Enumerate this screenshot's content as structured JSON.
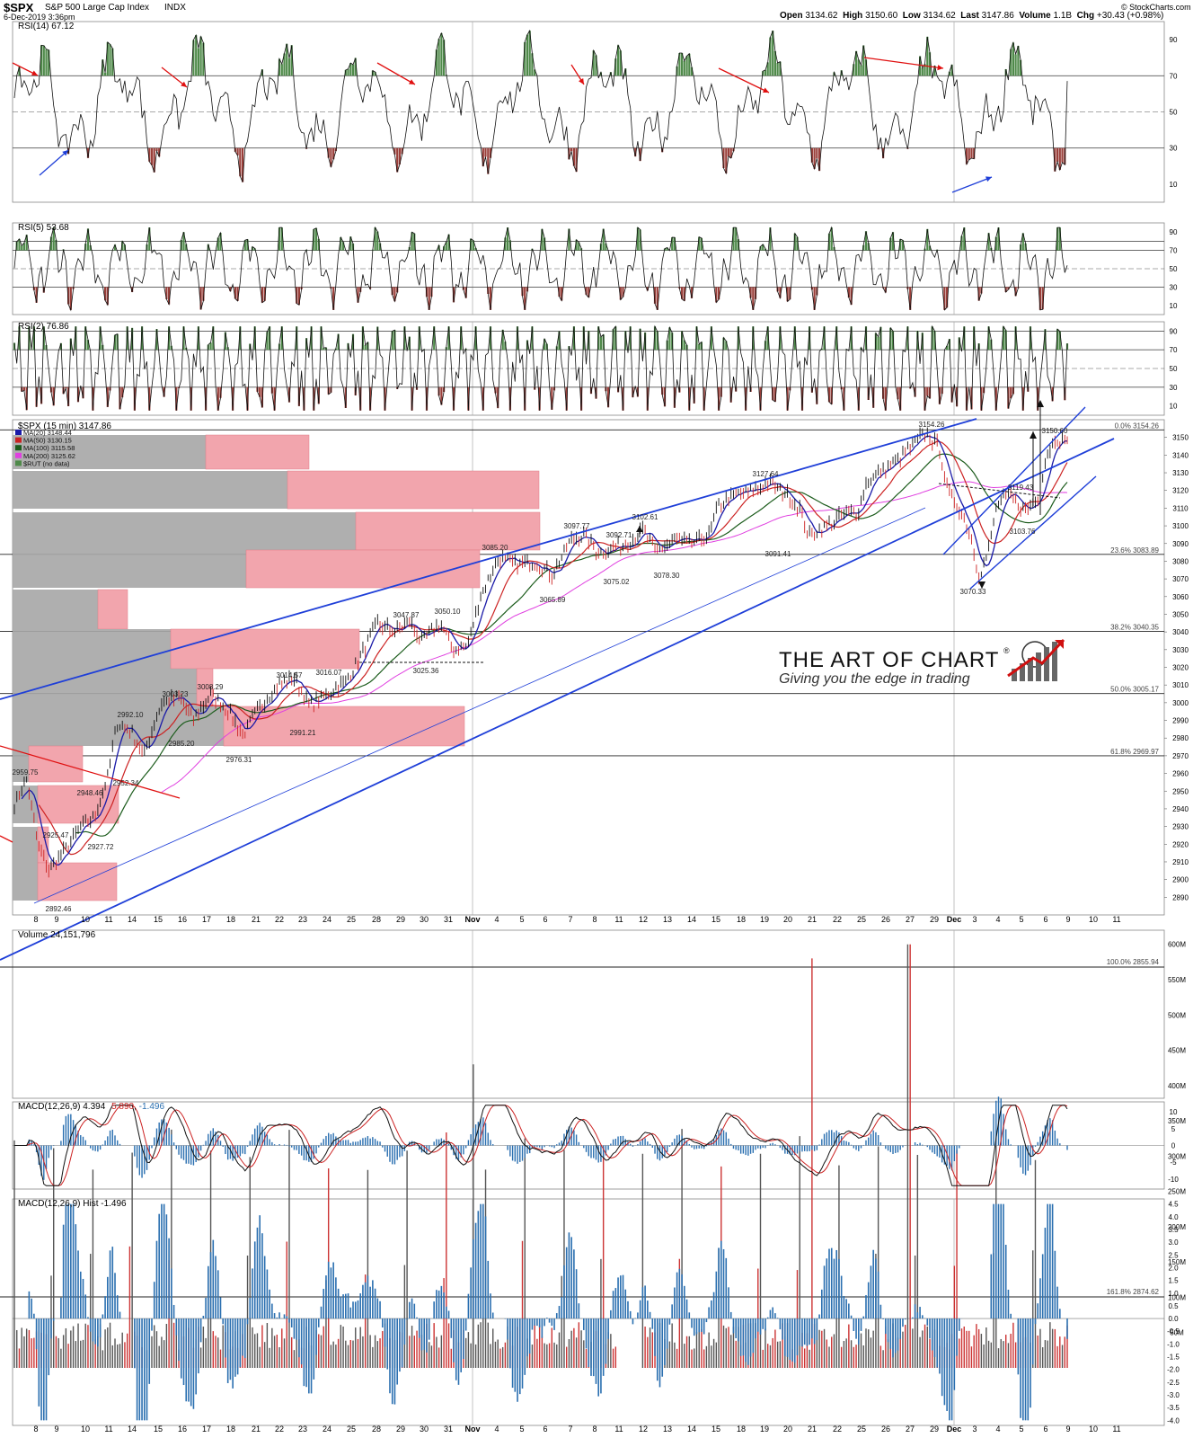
{
  "header": {
    "ticker": "$SPX",
    "name": "S&P 500 Large Cap Index",
    "exchange": "INDX",
    "date": "6-Dec-2019 3:36pm",
    "open_label": "Open",
    "open": "3134.62",
    "high_label": "High",
    "high": "3150.60",
    "low_label": "Low",
    "low": "3134.62",
    "last_label": "Last",
    "last": "3147.86",
    "volume_label": "Volume",
    "volume": "1.1B",
    "chg_label": "Chg",
    "chg": "+30.43 (+0.98%)",
    "copyright": "© StockCharts.com"
  },
  "watermark": {
    "title": "THE ART OF CHART",
    "reg": "®",
    "subtitle": "Giving you the edge in trading"
  },
  "colors": {
    "price_down": "#cc2222",
    "ma20": "#1a1aa8",
    "ma50": "#cc2222",
    "ma100": "#1c5c1c",
    "ma200": "#e040e0",
    "trendline": "#1f3fd8",
    "red_line": "#e01010",
    "overbought": "#4f8a4a",
    "oversold": "#9a3f3a",
    "macd_hist": "#2a6fb0",
    "vol_up": "#555555",
    "vol_down": "#cc3333",
    "vp_grey": "#a6a6a6",
    "vp_red": "#f2a5ad"
  },
  "chart_data": [
    {
      "panel": "rsi14",
      "type": "line",
      "title": "RSI(14) 67.12",
      "yticks": [
        "90",
        "70",
        "50",
        "30",
        "10"
      ],
      "ylim": [
        0,
        100
      ],
      "levels": [
        70,
        50,
        30
      ],
      "last_value": 67.12
    },
    {
      "panel": "rsi5",
      "type": "line",
      "title": "RSI(5) 53.68",
      "yticks": [
        "90",
        "70",
        "50",
        "30",
        "10"
      ],
      "ylim": [
        0,
        100
      ],
      "levels": [
        80,
        70,
        50,
        30
      ],
      "last_value": 53.68
    },
    {
      "panel": "rsi2",
      "type": "line",
      "title": "RSI(2) 76.86",
      "yticks": [
        "90",
        "70",
        "50",
        "30",
        "10"
      ],
      "ylim": [
        0,
        100
      ],
      "levels": [
        90,
        70,
        50,
        30
      ],
      "last_value": 76.86
    },
    {
      "panel": "price",
      "type": "line",
      "title": "$SPX (15 min) 3147.86",
      "legend": [
        {
          "label": "MA(20) 3148.44",
          "color": "#1a1aa8"
        },
        {
          "label": "MA(50) 3130.15",
          "color": "#cc2222"
        },
        {
          "label": "MA(100) 3115.58",
          "color": "#1c5c1c"
        },
        {
          "label": "MA(200) 3125.62",
          "color": "#e040e0"
        },
        {
          "label": "$RUT (no data)",
          "color": "#4f8a4a"
        }
      ],
      "ylim": [
        2880,
        3160
      ],
      "yticks": [
        "3150",
        "3140",
        "3130",
        "3120",
        "3110",
        "3100",
        "3090",
        "3080",
        "3070",
        "3060",
        "3050",
        "3040",
        "3030",
        "3020",
        "3010",
        "3000",
        "2990",
        "2980",
        "2970",
        "2960",
        "2950",
        "2940",
        "2930",
        "2920",
        "2910",
        "2900",
        "2890"
      ],
      "fib_levels": [
        {
          "label": "0.0% 3154.26",
          "value": 3154.26
        },
        {
          "label": "23.6% 3083.89",
          "value": 3083.89
        },
        {
          "label": "38.2% 3040.35",
          "value": 3040.35
        },
        {
          "label": "50.0% 3005.17",
          "value": 3005.17
        },
        {
          "label": "61.8% 2969.97",
          "value": 2969.97
        }
      ],
      "annotations": [
        {
          "text": "2959.75",
          "value": 2959.75
        },
        {
          "text": "2948.46",
          "value": 2948.46
        },
        {
          "text": "2925.47",
          "value": 2925.47
        },
        {
          "text": "2927.72",
          "value": 2927.72
        },
        {
          "text": "2892.46",
          "value": 2892.46
        },
        {
          "text": "2952.34",
          "value": 2952.34
        },
        {
          "text": "2992.10",
          "value": 2992.1
        },
        {
          "text": "2985.20",
          "value": 2985.2
        },
        {
          "text": "3003.23",
          "value": 3003.23
        },
        {
          "text": "3008.29",
          "value": 3008.29
        },
        {
          "text": "2976.31",
          "value": 2976.31
        },
        {
          "text": "3014.57",
          "value": 3014.57
        },
        {
          "text": "2991.21",
          "value": 2991.21
        },
        {
          "text": "3016.07",
          "value": 3016.07
        },
        {
          "text": "3047.87",
          "value": 3047.87
        },
        {
          "text": "3050.10",
          "value": 3050.1
        },
        {
          "text": "3025.36",
          "value": 3025.36
        },
        {
          "text": "3085.20",
          "value": 3085.2
        },
        {
          "text": "3065.89",
          "value": 3065.89
        },
        {
          "text": "3097.77",
          "value": 3097.77
        },
        {
          "text": "3092.71",
          "value": 3092.71
        },
        {
          "text": "3102.61",
          "value": 3102.61
        },
        {
          "text": "3075.02",
          "value": 3075.02
        },
        {
          "text": "3078.30",
          "value": 3078.3
        },
        {
          "text": "3127.64",
          "value": 3127.64
        },
        {
          "text": "3091.41",
          "value": 3091.41
        },
        {
          "text": "3154.26",
          "value": 3154.26
        },
        {
          "text": "3119.43",
          "value": 3119.43
        },
        {
          "text": "3103.76",
          "value": 3103.76
        },
        {
          "text": "3070.33",
          "value": 3070.33
        },
        {
          "text": "3150.60",
          "value": 3150.6
        }
      ],
      "last_value": 3147.86
    },
    {
      "panel": "volume",
      "type": "bar",
      "title": "Volume 24,151,796",
      "yticks": [
        "600M",
        "550M",
        "500M",
        "450M",
        "400M",
        "350M",
        "300M",
        "250M",
        "200M",
        "150M",
        "100M",
        "50M"
      ],
      "ylim": [
        0,
        620
      ],
      "fib_label": "100.0% 2855.94"
    },
    {
      "panel": "macd",
      "type": "line",
      "title_parts": [
        "MACD(12,26,9) 4.394",
        "5.890",
        "-1.496"
      ],
      "yticks": [
        "10",
        "5",
        "0",
        "-5",
        "-10"
      ],
      "ylim": [
        -13,
        13
      ]
    },
    {
      "panel": "macd_hist",
      "type": "bar",
      "title": "MACD(12,26,9) Hist -1.496",
      "yticks": [
        "4.5",
        "4.0",
        "3.5",
        "3.0",
        "2.5",
        "2.0",
        "1.5",
        "1.0",
        "0.5",
        "0.0",
        "-0.5",
        "-1.0",
        "-1.5",
        "-2.0",
        "-2.5",
        "-3.0",
        "-3.5",
        "-4.0"
      ],
      "ylim": [
        -4.2,
        4.7
      ],
      "fib_label": "161.8% 2874.62"
    }
  ],
  "x_axis": {
    "labels": [
      "8",
      "9",
      "10",
      "11",
      "14",
      "15",
      "16",
      "17",
      "18",
      "21",
      "22",
      "23",
      "24",
      "25",
      "28",
      "29",
      "30",
      "31",
      "Nov",
      "4",
      "5",
      "6",
      "7",
      "8",
      "11",
      "12",
      "13",
      "14",
      "15",
      "18",
      "19",
      "20",
      "21",
      "22",
      "25",
      "26",
      "27",
      "29",
      "Dec",
      "3",
      "4",
      "5",
      "6",
      "9",
      "10",
      "11"
    ]
  }
}
